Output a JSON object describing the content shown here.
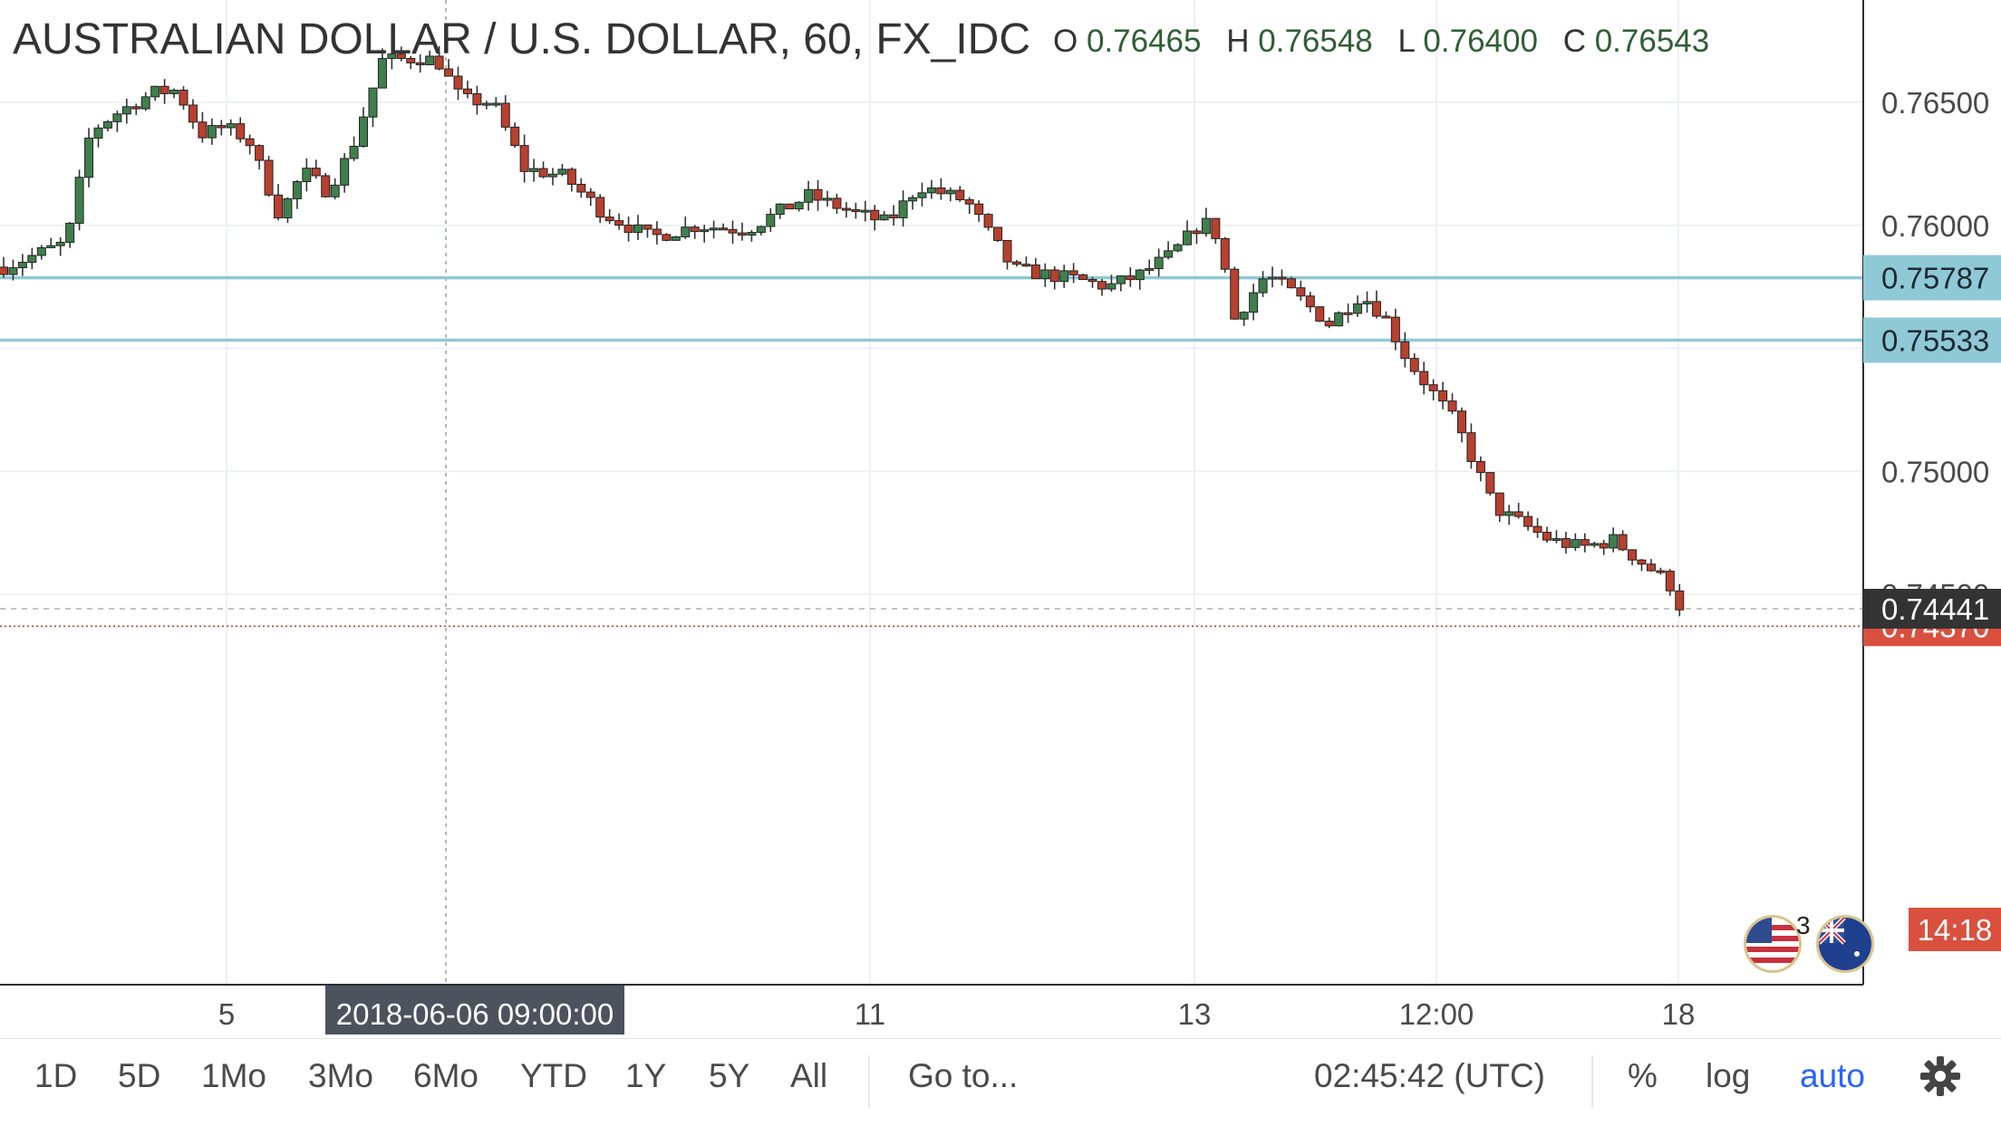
{
  "header": {
    "title": "AUSTRALIAN DOLLAR / U.S. DOLLAR, 60, FX_IDC",
    "ohlc": {
      "o_label": "O",
      "o": "0.76465",
      "h_label": "H",
      "h": "0.76548",
      "l_label": "L",
      "l": "0.76400",
      "c_label": "C",
      "c": "0.76543"
    }
  },
  "chart_data": {
    "type": "candlestick",
    "series_name": "AUSTRALIAN DOLLAR / U.S. DOLLAR",
    "interval": "60",
    "ylim": [
      0.7425,
      0.7678
    ],
    "y_ticks": [
      "0.76500",
      "0.76000",
      "0.75000",
      "0.74500"
    ],
    "x_ticks": [
      "5",
      "11",
      "13",
      "12:00",
      "18"
    ],
    "crosshair_label": "2018-06-06 09:00:00",
    "horizontal_lines": [
      {
        "label": "0.75787",
        "value": 0.75787,
        "color": "#8fc9d6"
      },
      {
        "label": "0.75533",
        "value": 0.75533,
        "color": "#8fc9d6"
      }
    ],
    "reference_lines": [
      {
        "label": "0.74441",
        "value": 0.74441,
        "style": "dashed",
        "color": "#b0b0b0",
        "tag_color": "#333333"
      },
      {
        "label": "0.74370",
        "value": 0.7437,
        "style": "dotted",
        "color": "#c0392b",
        "tag_color": "#d9503f"
      }
    ],
    "countdown": "14:18",
    "up_color": "#3f7f4c",
    "down_color": "#b8402e",
    "anchors": [
      [
        0,
        0.7583
      ],
      [
        40,
        0.7593
      ],
      [
        55,
        0.7638
      ],
      [
        70,
        0.7645
      ],
      [
        95,
        0.7654
      ],
      [
        110,
        0.7655
      ],
      [
        125,
        0.7637
      ],
      [
        140,
        0.764
      ],
      [
        155,
        0.7635
      ],
      [
        175,
        0.7604
      ],
      [
        190,
        0.7622
      ],
      [
        205,
        0.7614
      ],
      [
        220,
        0.763
      ],
      [
        240,
        0.7667
      ],
      [
        265,
        0.7668
      ],
      [
        275,
        0.7667
      ],
      [
        290,
        0.7651
      ],
      [
        310,
        0.765
      ],
      [
        330,
        0.7623
      ],
      [
        355,
        0.762
      ],
      [
        380,
        0.7605
      ],
      [
        410,
        0.7595
      ],
      [
        440,
        0.76
      ],
      [
        470,
        0.7598
      ],
      [
        510,
        0.7612
      ],
      [
        540,
        0.7605
      ],
      [
        560,
        0.7601
      ],
      [
        580,
        0.7616
      ],
      [
        610,
        0.761
      ],
      [
        640,
        0.7582
      ],
      [
        680,
        0.7578
      ],
      [
        700,
        0.7575
      ],
      [
        720,
        0.758
      ],
      [
        740,
        0.7588
      ],
      [
        760,
        0.7602
      ],
      [
        770,
        0.7595
      ],
      [
        780,
        0.7562
      ],
      [
        800,
        0.758
      ],
      [
        820,
        0.7571
      ],
      [
        840,
        0.756
      ],
      [
        860,
        0.7572
      ],
      [
        875,
        0.7563
      ],
      [
        890,
        0.7545
      ],
      [
        920,
        0.752
      ],
      [
        945,
        0.7485
      ],
      [
        980,
        0.7472
      ],
      [
        1000,
        0.7469
      ],
      [
        1020,
        0.7472
      ],
      [
        1040,
        0.7462
      ],
      [
        1055,
        0.7455
      ],
      [
        1066,
        0.744
      ]
    ]
  },
  "axis": {
    "price_labels": [
      "0.76500",
      "0.76000",
      "0.75000",
      "0.74500"
    ],
    "time_labels": [
      "5",
      "11",
      "13",
      "12:00",
      "18"
    ]
  },
  "events": {
    "badge_count": "3"
  },
  "toolbar": {
    "ranges": [
      "1D",
      "5D",
      "1Mo",
      "3Mo",
      "6Mo",
      "YTD",
      "1Y",
      "5Y",
      "All"
    ],
    "goto": "Go to...",
    "clock": "02:45:42 (UTC)",
    "percent": "%",
    "log": "log",
    "auto": "auto"
  }
}
